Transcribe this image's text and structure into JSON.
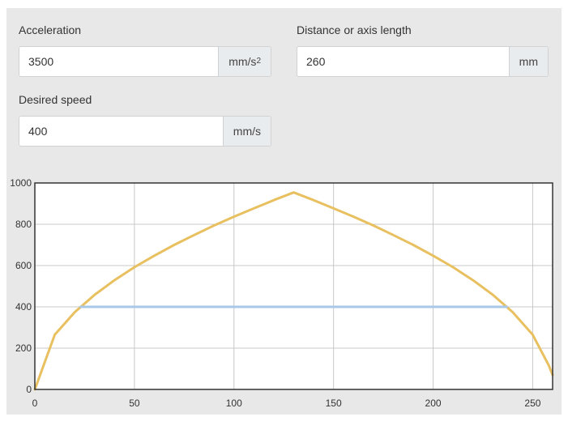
{
  "inputs": {
    "acceleration": {
      "label": "Acceleration",
      "value": "3500",
      "unit_base": "mm/s",
      "unit_sup": "2"
    },
    "distance": {
      "label": "Distance or axis length",
      "value": "260",
      "unit": "mm"
    },
    "speed": {
      "label": "Desired speed",
      "value": "400",
      "unit": "mm/s"
    }
  },
  "colors": {
    "panel_bg": "#e8e8e8",
    "profile_line": "#e8c060",
    "speed_line": "#a8c8e8",
    "grid": "#c8c8c8",
    "frame": "#333333"
  },
  "chart_data": {
    "type": "line",
    "title": "",
    "xlabel": "",
    "ylabel": "",
    "xlim": [
      0,
      260
    ],
    "ylim": [
      0,
      1000
    ],
    "x_ticks": [
      "0",
      "50",
      "100",
      "150",
      "200",
      "250"
    ],
    "y_ticks": [
      "0",
      "200",
      "400",
      "600",
      "800",
      "1000"
    ],
    "grid": true,
    "series": [
      {
        "color": "#e8c060",
        "x": [
          0,
          10,
          20,
          30,
          40,
          50,
          60,
          70,
          80,
          90,
          100,
          110,
          120,
          130,
          140,
          150,
          160,
          170,
          180,
          190,
          200,
          210,
          220,
          230,
          240,
          250,
          258,
          260
        ],
        "y": [
          0,
          265,
          374,
          458,
          529,
          592,
          648,
          700,
          748,
          794,
          837,
          877,
          917,
          954,
          917,
          877,
          837,
          794,
          748,
          700,
          648,
          592,
          529,
          458,
          374,
          265,
          118,
          70
        ]
      },
      {
        "color": "#a8c8e8",
        "x": [
          23,
          237
        ],
        "y": [
          400,
          400
        ]
      }
    ]
  }
}
